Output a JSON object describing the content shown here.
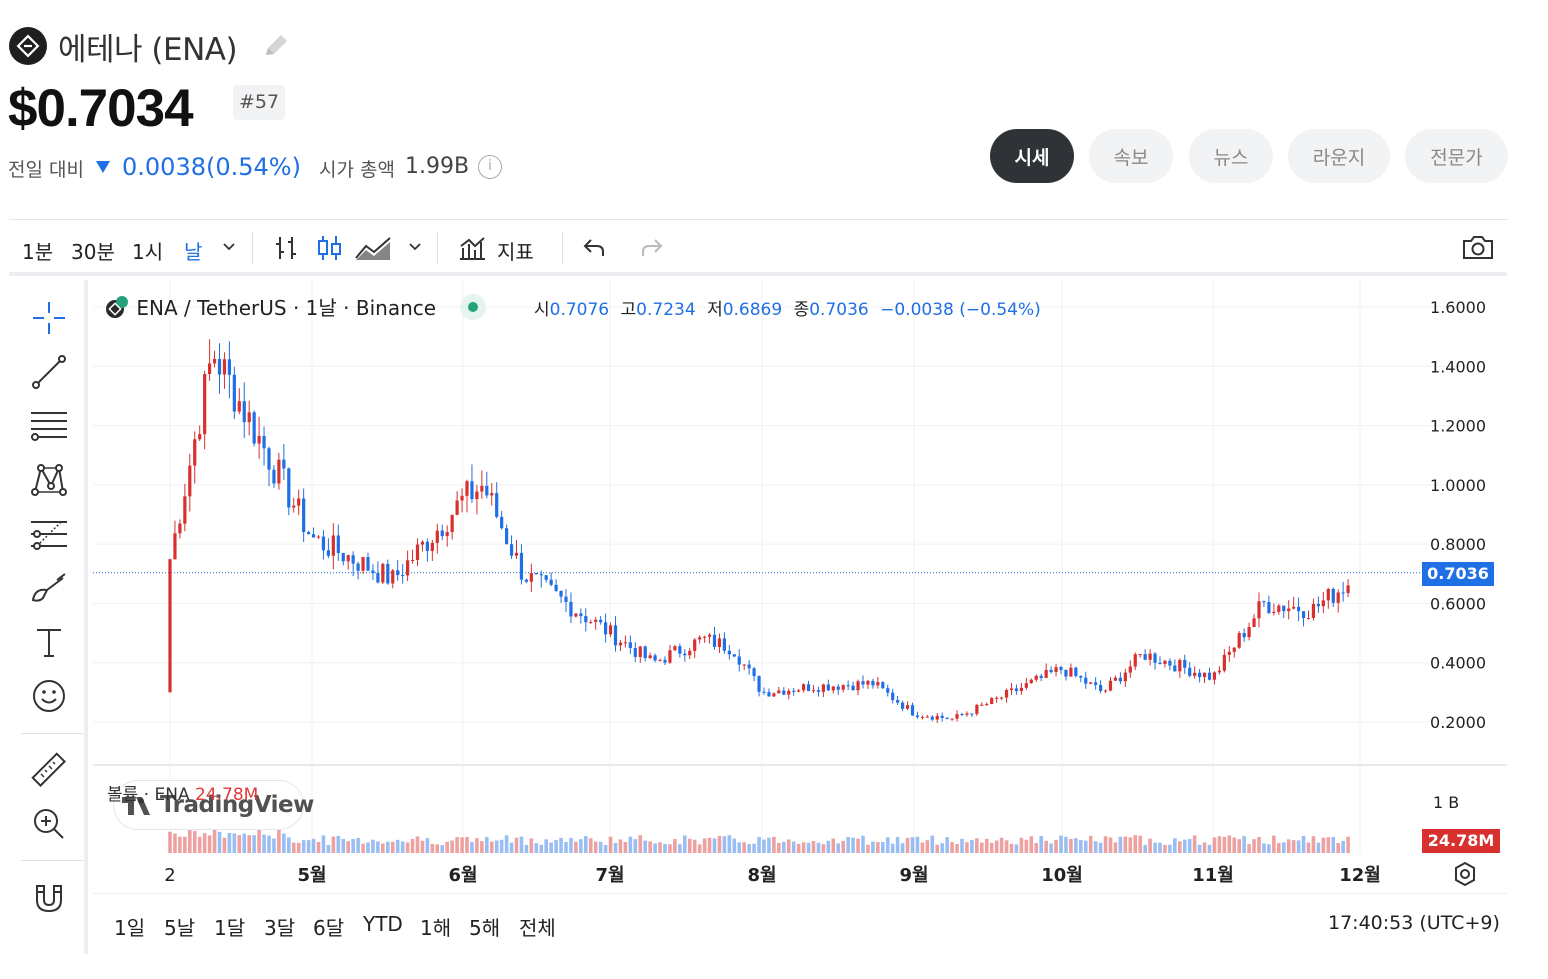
{
  "header": {
    "coin_name": "에테나 (ENA)",
    "price": "$0.7034",
    "rank": "#57",
    "change_label": "전일 대비",
    "change_value": "0.0038(0.54%)",
    "change_direction": "down",
    "market_cap_label": "시가 총액",
    "market_cap_value": "1.99B",
    "info_glyph": "i"
  },
  "tabs": [
    {
      "label": "시세",
      "active": true
    },
    {
      "label": "속보",
      "active": false
    },
    {
      "label": "뉴스",
      "active": false
    },
    {
      "label": "라운지",
      "active": false
    },
    {
      "label": "전문가",
      "active": false
    }
  ],
  "toolbar": {
    "intervals": [
      "1분",
      "30분",
      "1시",
      "날"
    ],
    "active_interval": "날",
    "indicators_label": "지표"
  },
  "legend": {
    "symbol": "ENA / TetherUS · 1날 · Binance",
    "open_label": "시",
    "open": "0.7076",
    "high_label": "고",
    "high": "0.7234",
    "low_label": "저",
    "low": "0.6869",
    "close_label": "종",
    "close": "0.7036",
    "change": "−0.0038 (−0.54%)"
  },
  "volume_legend": {
    "label": "볼륨 · ENA",
    "value": "24.78M",
    "watermark": "TradingView"
  },
  "tags": {
    "last_price": "0.7036",
    "last_volume": "24.78M"
  },
  "bottom": {
    "ranges": [
      "1일",
      "5날",
      "1달",
      "3달",
      "6달",
      "YTD",
      "1해",
      "5해",
      "전체"
    ],
    "clock": "17:40:53 (UTC+9)"
  },
  "colors": {
    "up": "#d8302f",
    "down": "#1f6fe5",
    "grid": "#f0f0f0"
  },
  "chart_data": {
    "type": "candlestick",
    "interval": "1D",
    "y_axis_ticks": [
      "1.6000",
      "1.4000",
      "1.2000",
      "1.0000",
      "0.8000",
      "0.6000",
      "0.4000",
      "0.2000"
    ],
    "ylim": [
      0.15,
      1.62
    ],
    "volume_axis_ticks": [
      "1 B"
    ],
    "x_axis_ticks": [
      "2",
      "5월",
      "6월",
      "7월",
      "8월",
      "9월",
      "10월",
      "11월",
      "12월"
    ],
    "last_price": 0.7036,
    "series_close_approx": [
      {
        "x": "2",
        "close": 0.75
      },
      {
        "x": "4/5",
        "close": 1.45
      },
      {
        "x": "5월",
        "close": 0.82
      },
      {
        "x": "5/10",
        "close": 0.75
      },
      {
        "x": "5/23",
        "close": 0.68
      },
      {
        "x": "6월",
        "close": 0.95
      },
      {
        "x": "6/5",
        "close": 1.0
      },
      {
        "x": "6/15",
        "close": 0.7
      },
      {
        "x": "7월",
        "close": 0.5
      },
      {
        "x": "7/5",
        "close": 0.4
      },
      {
        "x": "7/15",
        "close": 0.48
      },
      {
        "x": "7/25",
        "close": 0.45
      },
      {
        "x": "8월",
        "close": 0.3
      },
      {
        "x": "8/10",
        "close": 0.32
      },
      {
        "x": "8/20",
        "close": 0.33
      },
      {
        "x": "9월",
        "close": 0.23
      },
      {
        "x": "9/10",
        "close": 0.21
      },
      {
        "x": "9/20",
        "close": 0.27
      },
      {
        "x": "10월",
        "close": 0.38
      },
      {
        "x": "10/10",
        "close": 0.3
      },
      {
        "x": "10/20",
        "close": 0.43
      },
      {
        "x": "11월",
        "close": 0.35
      },
      {
        "x": "11/10",
        "close": 0.6
      },
      {
        "x": "11/20",
        "close": 0.58
      },
      {
        "x": "12월",
        "close": 0.7
      }
    ]
  }
}
